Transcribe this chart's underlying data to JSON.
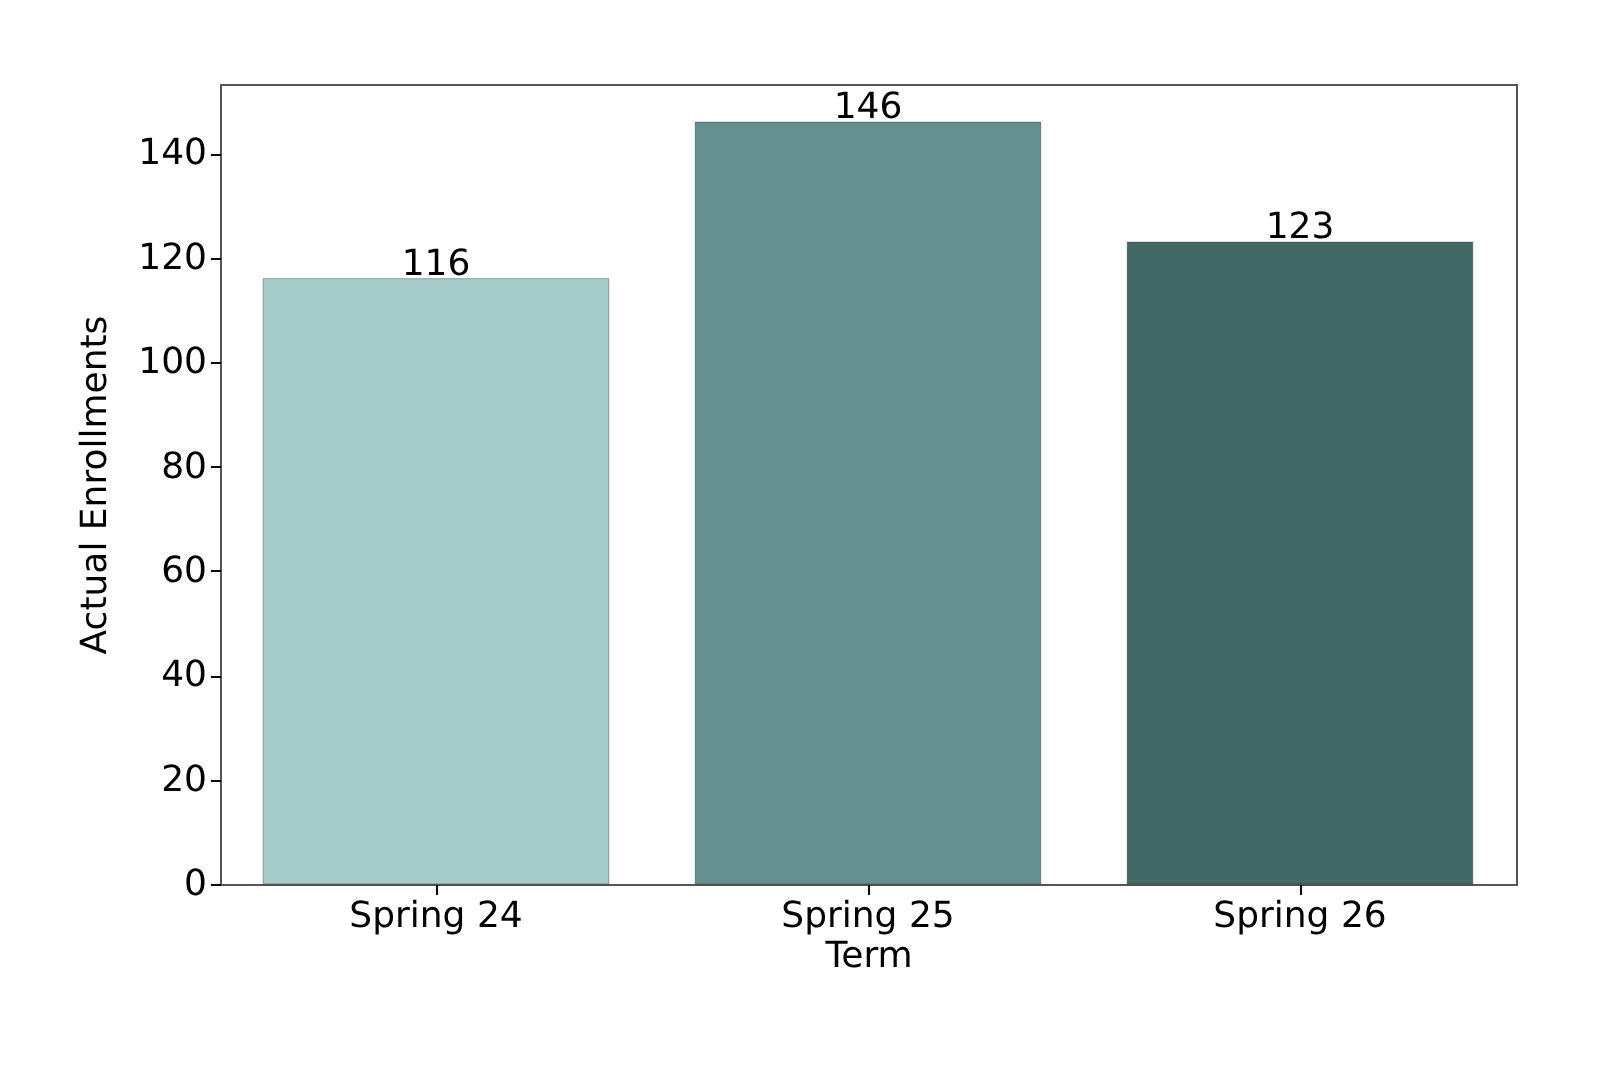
{
  "chart_data": {
    "type": "bar",
    "xlabel": "Term",
    "ylabel": "Actual Enrollments",
    "categories": [
      "Spring 24",
      "Spring 25",
      "Spring 26"
    ],
    "values": [
      116,
      146,
      123
    ],
    "colors": [
      "#a5cbc8",
      "#669090",
      "#426966"
    ],
    "ylim": [
      0,
      153.3
    ],
    "yticks": [
      0,
      20,
      40,
      60,
      80,
      100,
      120,
      140
    ],
    "data_labels": true,
    "grid": false
  }
}
